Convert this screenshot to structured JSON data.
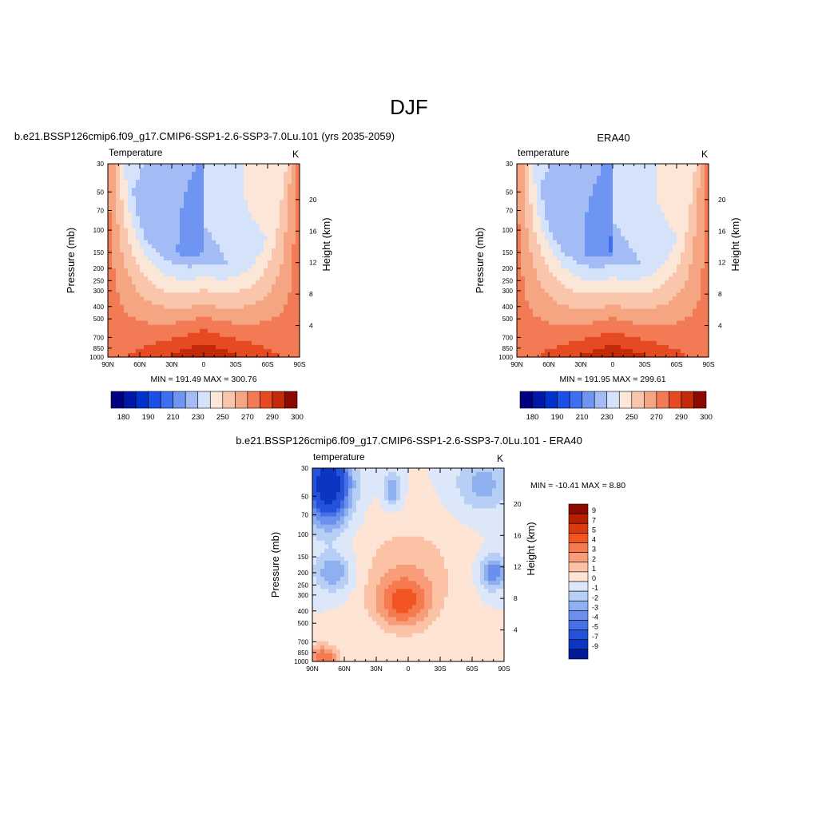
{
  "page_title": "DJF",
  "chart_data": [
    {
      "id": "model",
      "type": "contour",
      "title": "b.e21.BSSP126cmip6.f09_g17.CMIP6-SSP1-2.6-SSP3-7.0Lu.101 (yrs 2035-2059)",
      "left_label": "Temperature",
      "right_label": "K",
      "xlabel": "",
      "ylabel": "Pressure (mb)",
      "ylabel_right": "Height (km)",
      "x_ticks": [
        "90N",
        "60N",
        "30N",
        "0",
        "30S",
        "60S",
        "90S"
      ],
      "y_ticks": [
        "30",
        "50",
        "70",
        "100",
        "150",
        "200",
        "250",
        "300",
        "400",
        "500",
        "700",
        "850",
        "1000"
      ],
      "y_ticks_right": [
        "20",
        "16",
        "12",
        "8",
        "4"
      ],
      "y_scale": "log",
      "y_inverted": true,
      "stats": "MIN = 191.49  MAX = 300.76",
      "colorbar": {
        "orientation": "horizontal",
        "colors": [
          "#00007f",
          "#0017a8",
          "#0033cc",
          "#1c4fe6",
          "#3d6ff0",
          "#6e95f2",
          "#a3bcf5",
          "#d4e3fa",
          "#fce6d8",
          "#f9c6ac",
          "#f6a582",
          "#f27a55",
          "#e64a23",
          "#c22a0a",
          "#8c0a00"
        ],
        "labels": [
          "180",
          "190",
          "210",
          "230",
          "250",
          "270",
          "290",
          "300"
        ]
      },
      "field_summary": {
        "min": 191.49,
        "max": 300.76,
        "features": [
          "warm core near surface at equator",
          "cold minimum near 70-100 mb in northern tropics",
          "warmer stratosphere near 90S"
        ]
      }
    },
    {
      "id": "obs",
      "type": "contour",
      "title": "ERA40",
      "left_label": "temperature",
      "right_label": "K",
      "xlabel": "",
      "ylabel": "Pressure (mb)",
      "ylabel_right": "Height (km)",
      "x_ticks": [
        "90N",
        "60N",
        "30N",
        "0",
        "30S",
        "60S",
        "90S"
      ],
      "y_ticks": [
        "30",
        "50",
        "70",
        "100",
        "150",
        "200",
        "250",
        "300",
        "400",
        "500",
        "700",
        "850",
        "1000"
      ],
      "y_ticks_right": [
        "20",
        "16",
        "12",
        "8",
        "4"
      ],
      "y_scale": "log",
      "y_inverted": true,
      "stats": "MIN = 191.95  MAX = 299.61",
      "colorbar": {
        "orientation": "horizontal",
        "colors": [
          "#00007f",
          "#0017a8",
          "#0033cc",
          "#1c4fe6",
          "#3d6ff0",
          "#6e95f2",
          "#a3bcf5",
          "#d4e3fa",
          "#fce6d8",
          "#f9c6ac",
          "#f6a582",
          "#f27a55",
          "#e64a23",
          "#c22a0a",
          "#8c0a00"
        ],
        "labels": [
          "180",
          "190",
          "210",
          "230",
          "250",
          "270",
          "290",
          "300"
        ]
      },
      "field_summary": {
        "min": 191.95,
        "max": 299.61
      }
    },
    {
      "id": "diff",
      "type": "contour",
      "title": "b.e21.BSSP126cmip6.f09_g17.CMIP6-SSP1-2.6-SSP3-7.0Lu.101 - ERA40",
      "left_label": "temperature",
      "right_label": "K",
      "xlabel": "",
      "ylabel": "Pressure (mb)",
      "ylabel_right": "Height (km)",
      "x_ticks": [
        "90N",
        "60N",
        "30N",
        "0",
        "30S",
        "60S",
        "90S"
      ],
      "y_ticks": [
        "30",
        "50",
        "70",
        "100",
        "150",
        "200",
        "250",
        "300",
        "400",
        "500",
        "700",
        "850",
        "1000"
      ],
      "y_ticks_right": [
        "20",
        "16",
        "12",
        "8",
        "4"
      ],
      "y_scale": "log",
      "y_inverted": true,
      "stats": "MIN = -10.41  MAX =   8.80",
      "colorbar": {
        "orientation": "vertical",
        "colors": [
          "#8c0a00",
          "#b52005",
          "#d93a10",
          "#f25522",
          "#f57a50",
          "#f89c7a",
          "#fbc2a6",
          "#fde4d4",
          "#dce8fa",
          "#b8cff5",
          "#8fb0f0",
          "#6a8fec",
          "#4670e6",
          "#2452d9",
          "#0c36c2",
          "#001a99"
        ],
        "labels": [
          "9",
          "7",
          "5",
          "4",
          "3",
          "2",
          "1",
          "0",
          "-1",
          "-2",
          "-3",
          "-4",
          "-5",
          "-7",
          "-9"
        ]
      },
      "field_summary": {
        "min": -10.41,
        "max": 8.8,
        "features": [
          "cold bias in northern high-latitude stratosphere",
          "warm bias in tropical upper troposphere",
          "warm bias near surface at northern high latitudes"
        ]
      }
    }
  ]
}
